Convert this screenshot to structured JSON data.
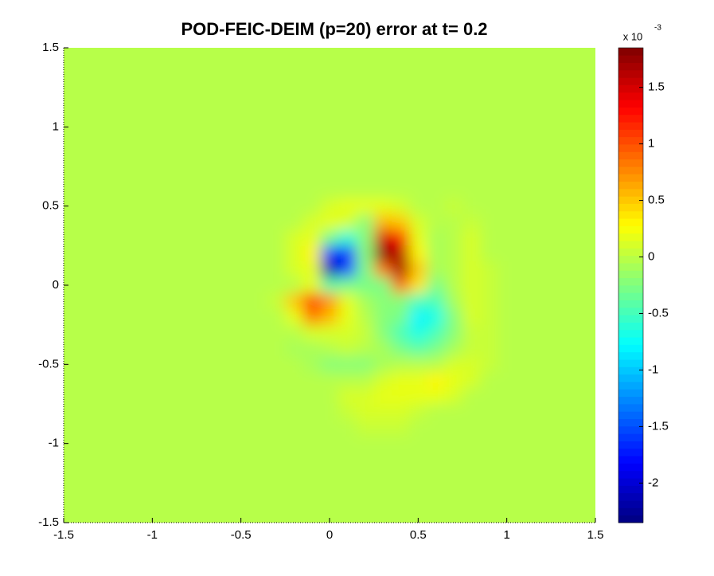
{
  "chart_data": {
    "type": "heatmap",
    "title": "POD-FEIC-DEIM (p=20) error at t= 0.2",
    "x": [
      -1.5,
      -1,
      -0.5,
      -0.4,
      -0.3,
      -0.2,
      -0.1,
      0,
      0.1,
      0.2,
      0.3,
      0.4,
      0.5,
      0.6,
      0.7,
      0.8,
      0.9,
      1,
      1.5
    ],
    "y": [
      1.5,
      1,
      0.6,
      0.5,
      0.4,
      0.3,
      0.2,
      0.1,
      0,
      -0.1,
      -0.2,
      -0.3,
      -0.4,
      -0.5,
      -0.6,
      -0.7,
      -0.8,
      -0.9,
      -1,
      -1.5
    ],
    "z": [
      [
        0,
        0,
        0,
        0,
        0,
        0,
        0,
        0,
        0,
        0,
        0,
        0,
        0,
        0,
        0,
        0,
        0,
        0,
        0
      ],
      [
        0,
        0,
        0,
        0,
        0,
        0,
        0,
        0,
        0,
        0,
        0,
        0,
        0,
        0,
        0,
        0,
        0,
        0,
        0
      ],
      [
        0,
        0,
        0,
        0,
        0,
        0,
        0,
        0,
        0,
        0,
        0,
        0,
        0,
        0,
        0,
        0,
        0,
        0,
        0
      ],
      [
        0,
        0,
        0,
        0,
        0,
        0,
        0,
        0.1,
        0.2,
        0.2,
        0.2,
        0.1,
        0,
        0,
        0.05,
        0,
        0,
        0,
        0
      ],
      [
        0,
        0,
        0,
        0,
        0,
        0,
        0.1,
        0.2,
        0.1,
        -0.2,
        0.6,
        0.5,
        0.1,
        0,
        0,
        0.05,
        0,
        0,
        0
      ],
      [
        0,
        0,
        0,
        0,
        0,
        0.1,
        0.2,
        -0.3,
        -0.6,
        -0.2,
        1.5,
        1.2,
        0.2,
        -0.1,
        0,
        0.1,
        0,
        0,
        0
      ],
      [
        0,
        0,
        0,
        0,
        0,
        0.1,
        0.3,
        -1.6,
        -1.8,
        -0.2,
        1.8,
        1.6,
        0.3,
        -0.1,
        0,
        0.1,
        0,
        0,
        0
      ],
      [
        0,
        0,
        0,
        0,
        0,
        0.1,
        0.2,
        -2.2,
        -1.5,
        -0.3,
        0.8,
        1.7,
        0.5,
        -0.1,
        0,
        0.1,
        0.05,
        0,
        0
      ],
      [
        0,
        0,
        0,
        0,
        0,
        0,
        0.2,
        -0.4,
        -0.3,
        -0.3,
        -0.3,
        0.9,
        0.4,
        -0.3,
        0,
        0.1,
        0.05,
        0,
        0
      ],
      [
        0,
        0,
        0,
        0,
        0.05,
        0.5,
        1.1,
        0.7,
        0.2,
        -0.1,
        -0.2,
        -0.2,
        -0.5,
        -0.5,
        -0.1,
        0.1,
        0.05,
        0,
        0
      ],
      [
        0,
        0,
        0,
        0,
        0,
        0.2,
        0.8,
        0.6,
        0.2,
        0,
        -0.2,
        -0.3,
        -0.8,
        -0.7,
        -0.2,
        0.1,
        0.05,
        0,
        0
      ],
      [
        0,
        0,
        0,
        0,
        0,
        0,
        0.1,
        0.1,
        0.1,
        0.05,
        -0.2,
        -0.5,
        -0.7,
        -0.5,
        -0.2,
        0.05,
        0.05,
        0,
        0
      ],
      [
        0,
        0,
        0,
        0,
        -0.05,
        -0.1,
        -0.1,
        0,
        0.05,
        0,
        -0.1,
        -0.3,
        -0.4,
        -0.3,
        -0.1,
        0.05,
        0.05,
        0,
        0
      ],
      [
        0,
        0,
        0,
        0,
        0,
        -0.05,
        -0.1,
        -0.2,
        -0.2,
        -0.2,
        -0.1,
        0,
        0,
        0,
        0.1,
        0.1,
        0.05,
        0,
        0
      ],
      [
        0,
        0,
        0,
        -0.05,
        -0.05,
        -0.05,
        -0.05,
        0,
        0,
        0,
        0.1,
        0.2,
        0.2,
        0.3,
        0.2,
        0.1,
        0,
        0,
        0
      ],
      [
        0,
        0,
        0,
        0,
        -0.05,
        0,
        0,
        0,
        0.1,
        0.1,
        0.15,
        0.2,
        0.2,
        0.15,
        0.1,
        0,
        0,
        0,
        0
      ],
      [
        0,
        0,
        0,
        0,
        0,
        -0.05,
        -0.05,
        0,
        0.05,
        0.1,
        0.1,
        0.1,
        0.05,
        0,
        0,
        0,
        0,
        0,
        0
      ],
      [
        0,
        0,
        0,
        0,
        0,
        0,
        0,
        0,
        0,
        0.05,
        0.05,
        0.05,
        0,
        0,
        0,
        0,
        0,
        0,
        0
      ],
      [
        0,
        0,
        0,
        0,
        0,
        0,
        0,
        0,
        0,
        0,
        0,
        0,
        0,
        0,
        0,
        0,
        0,
        0,
        0
      ],
      [
        0,
        0,
        0,
        0,
        0,
        0,
        0,
        0,
        0,
        0,
        0,
        0,
        0,
        0,
        0,
        0,
        0,
        0,
        0
      ]
    ],
    "xlim": [
      -1.5,
      1.5
    ],
    "ylim": [
      -1.5,
      1.5
    ],
    "xticks": [
      -1.5,
      -1,
      -0.5,
      0,
      0.5,
      1,
      1.5
    ],
    "yticks": [
      -1.5,
      -1,
      -0.5,
      0,
      0.5,
      1,
      1.5
    ],
    "colormap": "jet",
    "clim": [
      -2.35,
      1.85
    ],
    "cticks": [
      -2,
      -1.5,
      -1,
      -0.5,
      0,
      0.5,
      1,
      1.5
    ],
    "colorbar_label": "x 10",
    "colorbar_exponent": "-3"
  }
}
